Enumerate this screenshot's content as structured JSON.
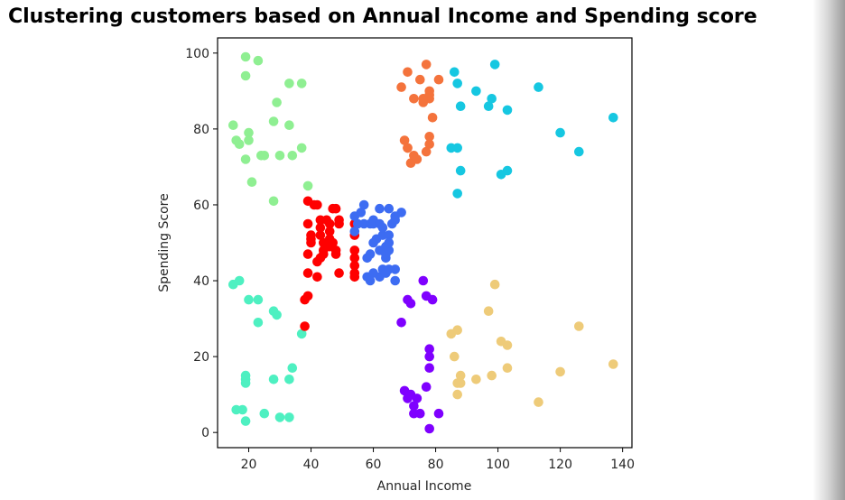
{
  "chart_data": {
    "type": "scatter",
    "title": "Clustering customers based on Annual Income and Spending score",
    "xlabel": "Annual Income",
    "ylabel": "Spending Score",
    "xlim": [
      10,
      143
    ],
    "ylim": [
      -4,
      104
    ],
    "xticks": [
      "20",
      "40",
      "60",
      "80",
      "100",
      "120",
      "140"
    ],
    "yticks": [
      "0",
      "20",
      "40",
      "60",
      "80",
      "100"
    ],
    "grid": false,
    "legend": "none",
    "series": [
      {
        "color": "#8fef92",
        "points": [
          [
            15,
            81
          ],
          [
            16,
            77
          ],
          [
            17,
            76
          ],
          [
            19,
            94
          ],
          [
            19,
            72
          ],
          [
            20,
            77
          ],
          [
            20,
            79
          ],
          [
            21,
            66
          ],
          [
            19,
            99
          ],
          [
            23,
            98
          ],
          [
            24,
            73
          ],
          [
            25,
            73
          ],
          [
            28,
            82
          ],
          [
            28,
            61
          ],
          [
            29,
            87
          ],
          [
            30,
            73
          ],
          [
            33,
            81
          ],
          [
            33,
            92
          ],
          [
            34,
            73
          ],
          [
            37,
            75
          ],
          [
            37,
            92
          ],
          [
            39,
            65
          ]
        ]
      },
      {
        "color": "#4ef0c1",
        "points": [
          [
            15,
            39
          ],
          [
            16,
            6
          ],
          [
            17,
            40
          ],
          [
            18,
            6
          ],
          [
            19,
            3
          ],
          [
            19,
            14
          ],
          [
            19,
            15
          ],
          [
            19,
            13
          ],
          [
            20,
            35
          ],
          [
            23,
            35
          ],
          [
            23,
            29
          ],
          [
            25,
            5
          ],
          [
            28,
            14
          ],
          [
            28,
            32
          ],
          [
            29,
            31
          ],
          [
            30,
            4
          ],
          [
            33,
            4
          ],
          [
            33,
            14
          ],
          [
            34,
            17
          ],
          [
            37,
            26
          ]
        ]
      },
      {
        "color": "#ff0000",
        "points": [
          [
            38,
            35
          ],
          [
            38,
            28
          ],
          [
            39,
            36
          ],
          [
            39,
            42
          ],
          [
            39,
            47
          ],
          [
            39,
            55
          ],
          [
            39,
            61
          ],
          [
            40,
            51
          ],
          [
            40,
            52
          ],
          [
            40,
            50
          ],
          [
            41,
            60
          ],
          [
            42,
            60
          ],
          [
            42,
            41
          ],
          [
            42,
            45
          ],
          [
            43,
            56
          ],
          [
            43,
            54
          ],
          [
            43,
            52
          ],
          [
            43,
            46
          ],
          [
            44,
            48
          ],
          [
            44,
            47
          ],
          [
            44,
            50
          ],
          [
            45,
            56
          ],
          [
            46,
            55
          ],
          [
            46,
            53
          ],
          [
            46,
            51
          ],
          [
            46,
            49
          ],
          [
            47,
            59
          ],
          [
            47,
            50
          ],
          [
            48,
            59
          ],
          [
            48,
            47
          ],
          [
            48,
            48
          ],
          [
            49,
            55
          ],
          [
            49,
            42
          ],
          [
            49,
            56
          ],
          [
            54,
            41
          ],
          [
            54,
            42
          ],
          [
            54,
            44
          ],
          [
            54,
            46
          ],
          [
            54,
            48
          ],
          [
            54,
            52
          ],
          [
            54,
            55
          ]
        ]
      },
      {
        "color": "#3d6cf2",
        "points": [
          [
            54,
            53
          ],
          [
            54,
            57
          ],
          [
            55,
            55
          ],
          [
            56,
            58
          ],
          [
            57,
            60
          ],
          [
            57,
            55
          ],
          [
            58,
            41
          ],
          [
            58,
            46
          ],
          [
            59,
            47
          ],
          [
            59,
            40
          ],
          [
            59,
            55
          ],
          [
            60,
            55
          ],
          [
            60,
            42
          ],
          [
            60,
            50
          ],
          [
            60,
            56
          ],
          [
            61,
            51
          ],
          [
            62,
            48
          ],
          [
            62,
            59
          ],
          [
            62,
            55
          ],
          [
            62,
            41
          ],
          [
            63,
            52
          ],
          [
            63,
            43
          ],
          [
            63,
            48
          ],
          [
            63,
            54
          ],
          [
            64,
            42
          ],
          [
            64,
            46
          ],
          [
            64,
            47
          ],
          [
            64,
            49
          ],
          [
            65,
            59
          ],
          [
            65,
            48
          ],
          [
            65,
            50
          ],
          [
            65,
            43
          ],
          [
            65,
            52
          ],
          [
            66,
            55
          ],
          [
            67,
            57
          ],
          [
            67,
            56
          ],
          [
            67,
            40
          ],
          [
            67,
            43
          ],
          [
            69,
            58
          ]
        ]
      },
      {
        "color": "#f4733c",
        "points": [
          [
            69,
            91
          ],
          [
            70,
            77
          ],
          [
            71,
            95
          ],
          [
            71,
            75
          ],
          [
            71,
            75
          ],
          [
            72,
            71
          ],
          [
            73,
            88
          ],
          [
            73,
            73
          ],
          [
            74,
            72
          ],
          [
            75,
            93
          ],
          [
            76,
            87
          ],
          [
            77,
            97
          ],
          [
            77,
            74
          ],
          [
            78,
            90
          ],
          [
            78,
            76
          ],
          [
            78,
            88
          ],
          [
            78,
            89
          ],
          [
            78,
            78
          ],
          [
            79,
            83
          ],
          [
            81,
            93
          ],
          [
            76,
            88
          ]
        ]
      },
      {
        "color": "#16c7e1",
        "points": [
          [
            85,
            75
          ],
          [
            86,
            95
          ],
          [
            87,
            63
          ],
          [
            87,
            75
          ],
          [
            87,
            92
          ],
          [
            88,
            69
          ],
          [
            88,
            86
          ],
          [
            93,
            90
          ],
          [
            97,
            86
          ],
          [
            98,
            88
          ],
          [
            99,
            97
          ],
          [
            101,
            68
          ],
          [
            103,
            85
          ],
          [
            103,
            69
          ],
          [
            113,
            91
          ],
          [
            120,
            79
          ],
          [
            126,
            74
          ],
          [
            137,
            83
          ]
        ]
      },
      {
        "color": "#7f00ff",
        "points": [
          [
            69,
            29
          ],
          [
            70,
            11
          ],
          [
            71,
            9
          ],
          [
            71,
            35
          ],
          [
            72,
            34
          ],
          [
            72,
            10
          ],
          [
            73,
            5
          ],
          [
            73,
            7
          ],
          [
            74,
            9
          ],
          [
            75,
            5
          ],
          [
            76,
            40
          ],
          [
            77,
            12
          ],
          [
            77,
            36
          ],
          [
            78,
            22
          ],
          [
            78,
            17
          ],
          [
            78,
            20
          ],
          [
            78,
            1
          ],
          [
            79,
            35
          ],
          [
            81,
            5
          ]
        ]
      },
      {
        "color": "#eecb79",
        "points": [
          [
            85,
            26
          ],
          [
            86,
            20
          ],
          [
            87,
            27
          ],
          [
            87,
            13
          ],
          [
            87,
            10
          ],
          [
            88,
            13
          ],
          [
            88,
            15
          ],
          [
            93,
            14
          ],
          [
            97,
            32
          ],
          [
            98,
            15
          ],
          [
            99,
            39
          ],
          [
            101,
            24
          ],
          [
            103,
            17
          ],
          [
            103,
            23
          ],
          [
            113,
            8
          ],
          [
            120,
            16
          ],
          [
            126,
            28
          ],
          [
            137,
            18
          ]
        ]
      }
    ]
  }
}
